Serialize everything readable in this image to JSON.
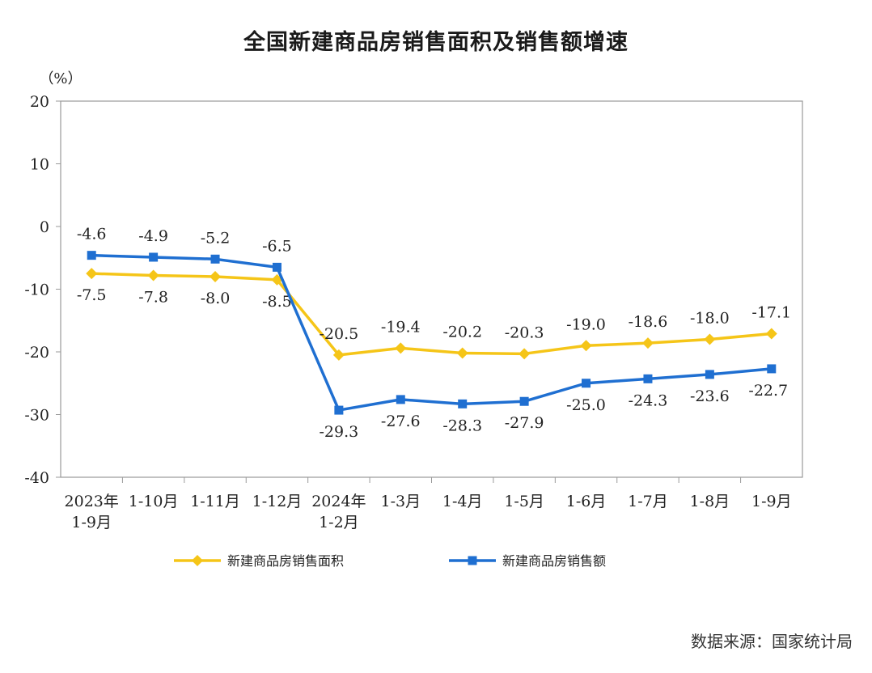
{
  "chart_data": {
    "type": "line",
    "title": "全国新建商品房销售面积及销售额增速",
    "y_unit": "（%）",
    "ylim": [
      -40,
      20
    ],
    "yticks": [
      "20",
      "10",
      "0",
      "-10",
      "-20",
      "-30",
      "-40"
    ],
    "ytick_values": [
      20,
      10,
      0,
      -10,
      -20,
      -30,
      -40
    ],
    "categories": [
      [
        "2023年",
        "1-9月"
      ],
      [
        "1-10月"
      ],
      [
        "1-11月"
      ],
      [
        "1-12月"
      ],
      [
        "2024年",
        "1-2月"
      ],
      [
        "1-3月"
      ],
      [
        "1-4月"
      ],
      [
        "1-5月"
      ],
      [
        "1-6月"
      ],
      [
        "1-7月"
      ],
      [
        "1-8月"
      ],
      [
        "1-9月"
      ]
    ],
    "series": [
      {
        "name": "新建商品房销售面积",
        "color": "#F5C518",
        "marker": "diamond",
        "values": [
          -7.5,
          -7.8,
          -8.0,
          -8.5,
          -20.5,
          -19.4,
          -20.2,
          -20.3,
          -19.0,
          -18.6,
          -18.0,
          -17.1
        ],
        "labels": [
          "-7.5",
          "-7.8",
          "-8.0",
          "-8.5",
          "-20.5",
          "-19.4",
          "-20.2",
          "-20.3",
          "-19.0",
          "-18.6",
          "-18.0",
          "-17.1"
        ]
      },
      {
        "name": "新建商品房销售额",
        "color": "#1F6FD1",
        "marker": "square",
        "values": [
          -4.6,
          -4.9,
          -5.2,
          -6.5,
          -29.3,
          -27.6,
          -28.3,
          -27.9,
          -25.0,
          -24.3,
          -23.6,
          -22.7
        ],
        "labels": [
          "-4.6",
          "-4.9",
          "-5.2",
          "-6.5",
          "-29.3",
          "-27.6",
          "-28.3",
          "-27.9",
          "-25.0",
          "-24.3",
          "-23.6",
          "-22.7"
        ]
      }
    ],
    "grid": false,
    "legend_position": "bottom"
  },
  "source": "数据来源：国家统计局"
}
